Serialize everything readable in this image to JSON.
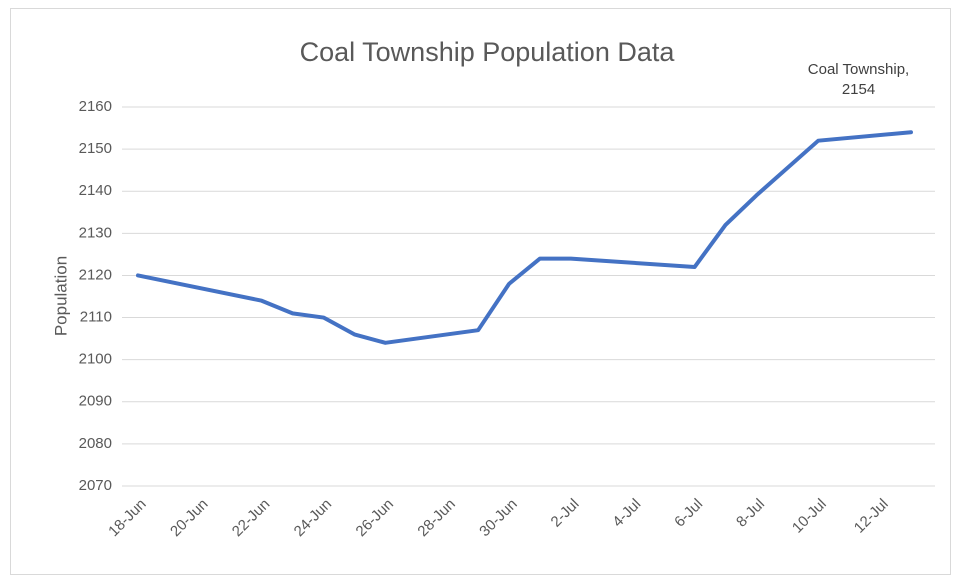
{
  "chart_data": {
    "type": "line",
    "title": "Coal Township Population Data",
    "y_label": "Population",
    "x": [
      "18-Jun",
      "22-Jun",
      "23-Jun",
      "24-Jun",
      "25-Jun",
      "26-Jun",
      "29-Jun",
      "30-Jun",
      "1-Jul",
      "2-Jul",
      "6-Jul",
      "7-Jul",
      "8-Jul",
      "10-Jul",
      "13-Jul"
    ],
    "series": [
      {
        "name": "Coal Township",
        "color": "#4472c4",
        "values": [
          2120,
          2114,
          2111,
          2110,
          2106,
          2104,
          2107,
          2118,
          2124,
          2124,
          2122,
          2132,
          2139,
          2152,
          2154
        ],
        "value_labels": [
          null,
          null,
          null,
          null,
          null,
          null,
          null,
          null,
          null,
          null,
          null,
          null,
          null,
          null,
          "Coal Township, 2154"
        ]
      }
    ],
    "xlim": [
      "18-Jun",
      "13-Jul"
    ],
    "xticks": [
      "18-Jun",
      "20-Jun",
      "22-Jun",
      "24-Jun",
      "26-Jun",
      "28-Jun",
      "30-Jun",
      "2-Jul",
      "4-Jul",
      "6-Jul",
      "8-Jul",
      "10-Jul",
      "12-Jul"
    ],
    "ylim": [
      2070,
      2160
    ],
    "yticks": [
      2070,
      2080,
      2090,
      2100,
      2110,
      2120,
      2130,
      2140,
      2150,
      2160
    ],
    "grid": true
  }
}
